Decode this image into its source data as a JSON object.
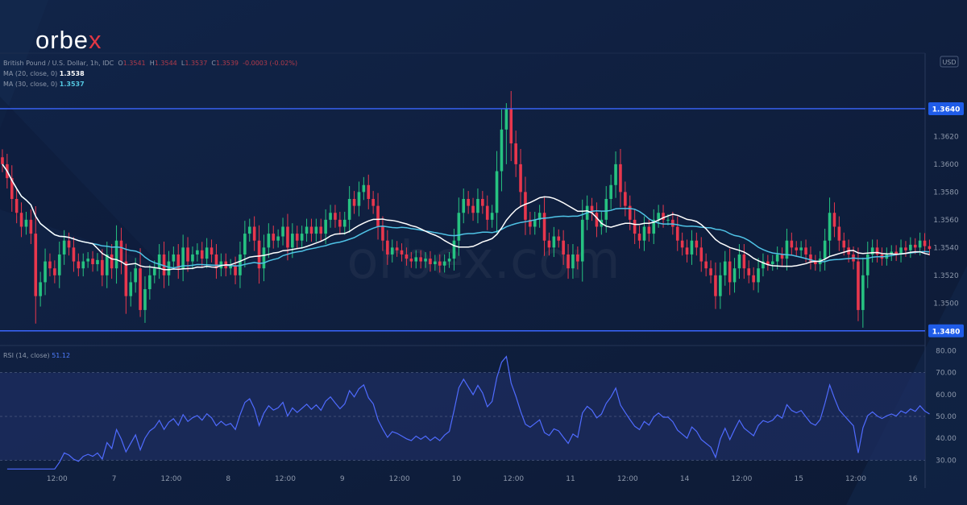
{
  "brand": {
    "logo_text": "orbe",
    "logo_x": "x",
    "watermark": "orbex.com"
  },
  "legend": {
    "symbol": "British Pound / U.S. Dollar, 1h, IDC",
    "o_label": "O",
    "o": "1.3541",
    "h_label": "H",
    "h": "1.3544",
    "l_label": "L",
    "l": "1.3537",
    "c_label": "C",
    "c": "1.3539",
    "change": "-0.0003 (-0.02%)",
    "ma20_label": "MA (20, close, 0)",
    "ma20_value": "1.3538",
    "ma30_label": "MA (30, close, 0)",
    "ma30_value": "1.3537"
  },
  "currency": "USD",
  "rsi_legend": {
    "label": "RSI (14, close)",
    "value": "51.12"
  },
  "colors": {
    "background": "#0f1e3b",
    "up": "#26c281",
    "down": "#e8374d",
    "ma20": "#ffffff",
    "ma30": "#4fc3e6",
    "rsi": "#4f6bff",
    "level": "#3a66ff"
  },
  "chart_data": [
    {
      "type": "candlestick",
      "title": "British Pound / U.S. Dollar, 1h, IDC",
      "ylim": [
        1.347,
        1.368
      ],
      "y_ticks": [
        "1.3500",
        "1.3520",
        "1.3540",
        "1.3560",
        "1.3580",
        "1.3600",
        "1.3620"
      ],
      "x_ticks": [
        {
          "label": "12:00",
          "t": 12
        },
        {
          "label": "7",
          "t": 24
        },
        {
          "label": "12:00",
          "t": 36
        },
        {
          "label": "8",
          "t": 48
        },
        {
          "label": "12:00",
          "t": 60
        },
        {
          "label": "9",
          "t": 72
        },
        {
          "label": "12:00",
          "t": 84
        },
        {
          "label": "10",
          "t": 96
        },
        {
          "label": "12:00",
          "t": 108
        },
        {
          "label": "11",
          "t": 120
        },
        {
          "label": "12:00",
          "t": 132
        },
        {
          "label": "14",
          "t": 144
        },
        {
          "label": "12:00",
          "t": 156
        },
        {
          "label": "15",
          "t": 168
        },
        {
          "label": "12:00",
          "t": 180
        },
        {
          "label": "16",
          "t": 192
        }
      ],
      "horizontal_levels": [
        {
          "label": "1.3640",
          "value": 1.364
        },
        {
          "label": "1.3480",
          "value": 1.348
        }
      ],
      "close": [
        1.36,
        1.359,
        1.3575,
        1.3565,
        1.3555,
        1.356,
        1.355,
        1.3505,
        1.3515,
        1.353,
        1.3525,
        1.352,
        1.3535,
        1.3545,
        1.354,
        1.353,
        1.3525,
        1.353,
        1.3532,
        1.3528,
        1.3531,
        1.352,
        1.3535,
        1.3525,
        1.3545,
        1.353,
        1.3505,
        1.3515,
        1.3525,
        1.3495,
        1.351,
        1.352,
        1.3525,
        1.3535,
        1.352,
        1.353,
        1.3535,
        1.3525,
        1.354,
        1.353,
        1.3535,
        1.3538,
        1.3532,
        1.354,
        1.3535,
        1.3525,
        1.353,
        1.3525,
        1.3527,
        1.352,
        1.3535,
        1.355,
        1.3555,
        1.3545,
        1.3525,
        1.354,
        1.355,
        1.3545,
        1.3548,
        1.3555,
        1.354,
        1.355,
        1.3545,
        1.355,
        1.3555,
        1.355,
        1.3555,
        1.355,
        1.356,
        1.3565,
        1.356,
        1.3555,
        1.356,
        1.3575,
        1.357,
        1.358,
        1.3585,
        1.3575,
        1.357,
        1.3555,
        1.3545,
        1.3535,
        1.354,
        1.3538,
        1.3535,
        1.3532,
        1.353,
        1.3533,
        1.353,
        1.3532,
        1.3528,
        1.353,
        1.3527,
        1.353,
        1.3532,
        1.3545,
        1.3565,
        1.3575,
        1.357,
        1.3565,
        1.3575,
        1.357,
        1.356,
        1.3565,
        1.3595,
        1.3625,
        1.364,
        1.3615,
        1.36,
        1.358,
        1.356,
        1.3555,
        1.356,
        1.3565,
        1.3545,
        1.354,
        1.3548,
        1.3545,
        1.3535,
        1.3525,
        1.3535,
        1.353,
        1.356,
        1.357,
        1.3565,
        1.3555,
        1.356,
        1.3575,
        1.3585,
        1.36,
        1.358,
        1.357,
        1.356,
        1.355,
        1.3545,
        1.3555,
        1.355,
        1.356,
        1.3565,
        1.356,
        1.356,
        1.3555,
        1.3545,
        1.354,
        1.3535,
        1.3545,
        1.354,
        1.353,
        1.3525,
        1.352,
        1.3505,
        1.352,
        1.353,
        1.3515,
        1.3525,
        1.3535,
        1.3525,
        1.352,
        1.3515,
        1.3525,
        1.353,
        1.3528,
        1.353,
        1.3535,
        1.3532,
        1.3545,
        1.354,
        1.3538,
        1.354,
        1.3535,
        1.353,
        1.3528,
        1.3532,
        1.3545,
        1.3565,
        1.3555,
        1.3545,
        1.354,
        1.3535,
        1.353,
        1.3495,
        1.352,
        1.3535,
        1.354,
        1.3535,
        1.3532,
        1.3535,
        1.3537,
        1.3535,
        1.354,
        1.3538,
        1.3542,
        1.354,
        1.3545,
        1.3541,
        1.3539
      ],
      "ma20_last": 1.3538,
      "ma30_last": 1.3537
    },
    {
      "type": "line",
      "title": "RSI (14, close)",
      "ylim": [
        25,
        82
      ],
      "y_ticks": [
        "30.00",
        "40.00",
        "50.00",
        "60.00",
        "70.00",
        "80.00"
      ],
      "band": [
        30,
        70
      ],
      "midline": 50,
      "last": 51.12
    }
  ]
}
